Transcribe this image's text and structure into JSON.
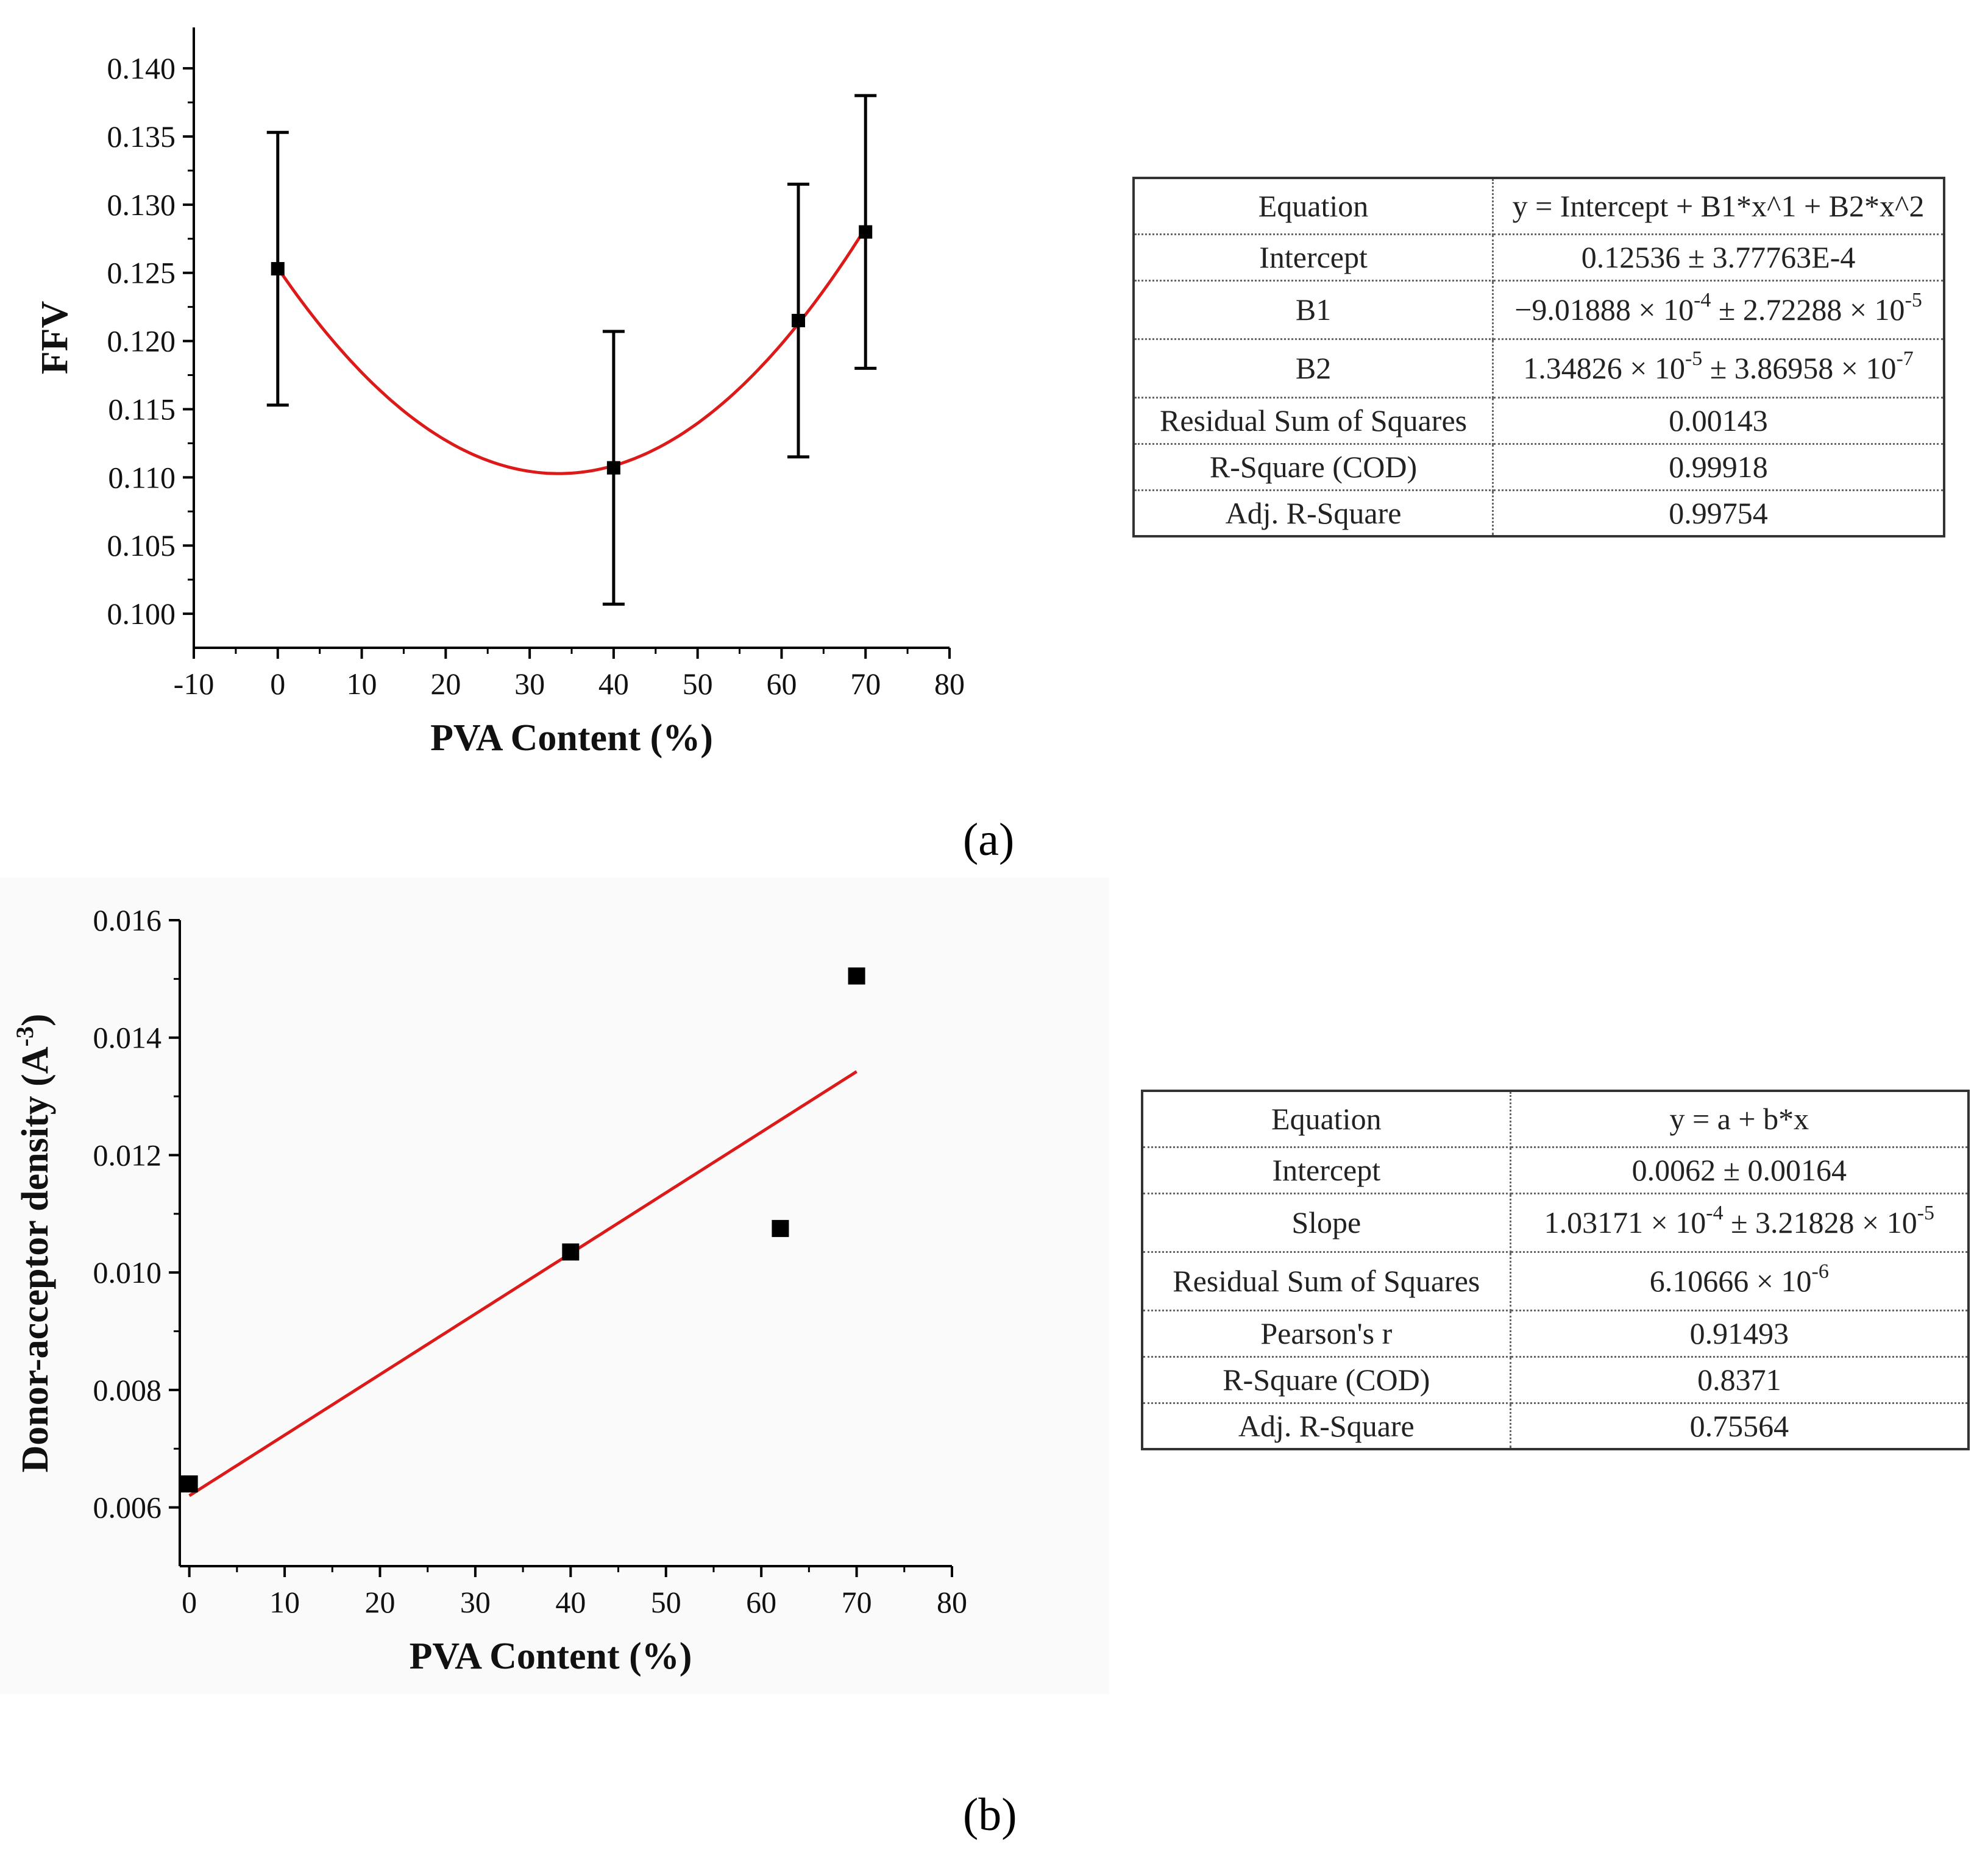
{
  "figure": {
    "panel_labels": {
      "a": "(a)",
      "b": "(b)"
    }
  },
  "colors": {
    "fit_line": "#dd1a1a",
    "marker": "#000000",
    "axis": "#000000"
  },
  "chart_data": [
    {
      "id": "a",
      "type": "scatter",
      "xlabel": "PVA Content (%)",
      "ylabel": "FFV",
      "xlim": [
        -10,
        80
      ],
      "ylim": [
        0.0975,
        0.143
      ],
      "x_ticks": [
        "-10",
        "0",
        "10",
        "20",
        "30",
        "40",
        "50",
        "60",
        "70",
        "80"
      ],
      "y_ticks": [
        "0.100",
        "0.105",
        "0.110",
        "0.115",
        "0.120",
        "0.125",
        "0.130",
        "0.135",
        "0.140"
      ],
      "series": [
        {
          "name": "FFV",
          "x": [
            0,
            40,
            62,
            70
          ],
          "y": [
            0.1253,
            0.1107,
            0.1215,
            0.128
          ],
          "error": [
            0.01,
            0.01,
            0.01,
            0.01
          ],
          "marker": "square"
        }
      ],
      "fit": {
        "kind": "quadratic",
        "intercept": 0.12536,
        "b1": -0.000901888,
        "b2": 1.34826e-05,
        "x_range": [
          0,
          70
        ]
      },
      "fit_table": [
        {
          "label": "Equation",
          "value": "y = Intercept + B1*x^1 + B2*x^2"
        },
        {
          "label": "Intercept",
          "value": "0.12536 ± 3.77763E-4"
        },
        {
          "label": "B1",
          "v_mant1": "−9.01888 × 10",
          "v_exp1": "-4",
          "v_mid": " ± 2.72288 × 10",
          "v_exp2": "-5"
        },
        {
          "label": "B2",
          "v_mant1": "1.34826 × 10",
          "v_exp1": "-5",
          "v_mid": " ± 3.86958 × 10",
          "v_exp2": "-7"
        },
        {
          "label": "Residual Sum of Squares",
          "value": "0.00143"
        },
        {
          "label": "R-Square (COD)",
          "value": "0.99918"
        },
        {
          "label": "Adj. R-Square",
          "value": "0.99754"
        }
      ]
    },
    {
      "id": "b",
      "type": "scatter",
      "xlabel": "PVA Content (%)",
      "ylabel_main": "Donor-acceptor density (A",
      "ylabel_sup": "-3",
      "ylabel_end": ")",
      "xlim": [
        -1,
        80
      ],
      "ylim": [
        0.005,
        0.016
      ],
      "x_ticks": [
        "0",
        "10",
        "20",
        "30",
        "40",
        "50",
        "60",
        "70",
        "80"
      ],
      "y_ticks": [
        "0.006",
        "0.008",
        "0.010",
        "0.012",
        "0.014",
        "0.016"
      ],
      "series": [
        {
          "name": "Donor-acceptor density",
          "x": [
            0,
            40,
            62,
            70
          ],
          "y": [
            0.0064,
            0.01035,
            0.01075,
            0.01505
          ],
          "marker": "square"
        }
      ],
      "fit": {
        "kind": "linear",
        "intercept": 0.0062,
        "slope": 0.000103171,
        "x_range": [
          0,
          70
        ]
      },
      "fit_table": [
        {
          "label": "Equation",
          "value": "y = a + b*x"
        },
        {
          "label": "Intercept",
          "value": "0.0062 ± 0.00164"
        },
        {
          "label": "Slope",
          "v_mant1": "1.03171 × 10",
          "v_exp1": "-4",
          "v_mid": " ± 3.21828 × 10",
          "v_exp2": "-5"
        },
        {
          "label": "Residual Sum of Squares",
          "v_mant1": "6.10666 × 10",
          "v_exp1": "-6"
        },
        {
          "label": "Pearson's r",
          "value": "0.91493"
        },
        {
          "label": "R-Square (COD)",
          "value": "0.8371"
        },
        {
          "label": "Adj. R-Square",
          "value": "0.75564"
        }
      ]
    }
  ]
}
